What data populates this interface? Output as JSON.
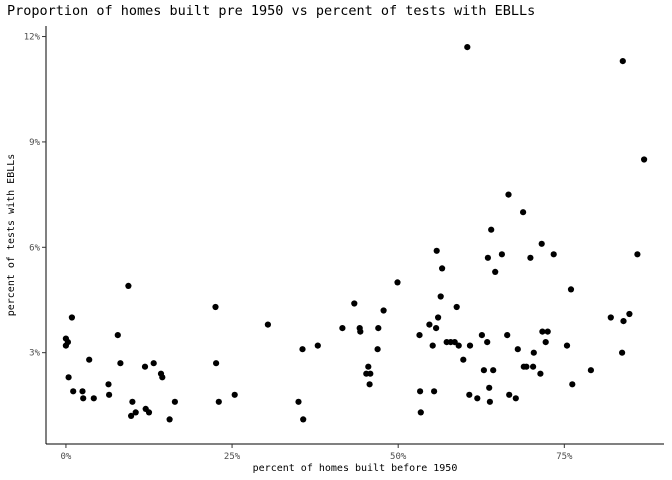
{
  "chart_data": {
    "type": "scatter",
    "title": "Proportion of homes built pre 1950 vs percent of tests with EBLLs",
    "xlabel": "percent of homes built before 1950",
    "ylabel": "percent of tests with EBLLs",
    "xlim": [
      -0.03,
      0.9
    ],
    "ylim": [
      0.004,
      0.123
    ],
    "x_ticks": [
      0,
      0.25,
      0.5,
      0.75
    ],
    "x_tick_labels": [
      "0%",
      "25%",
      "50%",
      "75%"
    ],
    "y_ticks": [
      0.03,
      0.06,
      0.09,
      0.12
    ],
    "y_tick_labels": [
      "3%",
      "6%",
      "9%",
      "12%"
    ],
    "grid": false,
    "point_color": "#000000",
    "points": [
      [
        0.0,
        0.034
      ],
      [
        0.0,
        0.032
      ],
      [
        0.003,
        0.033
      ],
      [
        0.004,
        0.023
      ],
      [
        0.009,
        0.04
      ],
      [
        0.011,
        0.019
      ],
      [
        0.025,
        0.019
      ],
      [
        0.026,
        0.017
      ],
      [
        0.035,
        0.028
      ],
      [
        0.042,
        0.017
      ],
      [
        0.064,
        0.021
      ],
      [
        0.065,
        0.018
      ],
      [
        0.078,
        0.035
      ],
      [
        0.082,
        0.027
      ],
      [
        0.094,
        0.049
      ],
      [
        0.098,
        0.012
      ],
      [
        0.1,
        0.016
      ],
      [
        0.105,
        0.013
      ],
      [
        0.119,
        0.026
      ],
      [
        0.12,
        0.014
      ],
      [
        0.125,
        0.013
      ],
      [
        0.132,
        0.027
      ],
      [
        0.143,
        0.024
      ],
      [
        0.145,
        0.023
      ],
      [
        0.156,
        0.011
      ],
      [
        0.164,
        0.016
      ],
      [
        0.225,
        0.043
      ],
      [
        0.226,
        0.027
      ],
      [
        0.23,
        0.016
      ],
      [
        0.254,
        0.018
      ],
      [
        0.304,
        0.038
      ],
      [
        0.35,
        0.016
      ],
      [
        0.356,
        0.031
      ],
      [
        0.357,
        0.011
      ],
      [
        0.379,
        0.032
      ],
      [
        0.416,
        0.037
      ],
      [
        0.434,
        0.044
      ],
      [
        0.442,
        0.037
      ],
      [
        0.443,
        0.036
      ],
      [
        0.452,
        0.024
      ],
      [
        0.455,
        0.026
      ],
      [
        0.457,
        0.021
      ],
      [
        0.458,
        0.024
      ],
      [
        0.469,
        0.031
      ],
      [
        0.47,
        0.037
      ],
      [
        0.478,
        0.042
      ],
      [
        0.499,
        0.05
      ],
      [
        0.532,
        0.035
      ],
      [
        0.533,
        0.019
      ],
      [
        0.534,
        0.013
      ],
      [
        0.547,
        0.038
      ],
      [
        0.552,
        0.032
      ],
      [
        0.554,
        0.019
      ],
      [
        0.557,
        0.037
      ],
      [
        0.558,
        0.059
      ],
      [
        0.56,
        0.04
      ],
      [
        0.564,
        0.046
      ],
      [
        0.566,
        0.054
      ],
      [
        0.573,
        0.033
      ],
      [
        0.579,
        0.033
      ],
      [
        0.585,
        0.033
      ],
      [
        0.588,
        0.043
      ],
      [
        0.591,
        0.032
      ],
      [
        0.598,
        0.028
      ],
      [
        0.604,
        0.117
      ],
      [
        0.607,
        0.018
      ],
      [
        0.608,
        0.032
      ],
      [
        0.619,
        0.017
      ],
      [
        0.626,
        0.035
      ],
      [
        0.629,
        0.025
      ],
      [
        0.634,
        0.033
      ],
      [
        0.635,
        0.057
      ],
      [
        0.637,
        0.02
      ],
      [
        0.638,
        0.016
      ],
      [
        0.64,
        0.065
      ],
      [
        0.643,
        0.025
      ],
      [
        0.646,
        0.053
      ],
      [
        0.656,
        0.058
      ],
      [
        0.664,
        0.035
      ],
      [
        0.666,
        0.075
      ],
      [
        0.667,
        0.018
      ],
      [
        0.677,
        0.017
      ],
      [
        0.68,
        0.031
      ],
      [
        0.688,
        0.07
      ],
      [
        0.689,
        0.026
      ],
      [
        0.693,
        0.026
      ],
      [
        0.699,
        0.057
      ],
      [
        0.703,
        0.026
      ],
      [
        0.704,
        0.03
      ],
      [
        0.714,
        0.024
      ],
      [
        0.716,
        0.061
      ],
      [
        0.717,
        0.036
      ],
      [
        0.722,
        0.033
      ],
      [
        0.725,
        0.036
      ],
      [
        0.734,
        0.058
      ],
      [
        0.754,
        0.032
      ],
      [
        0.76,
        0.048
      ],
      [
        0.762,
        0.021
      ],
      [
        0.79,
        0.025
      ],
      [
        0.82,
        0.04
      ],
      [
        0.837,
        0.03
      ],
      [
        0.838,
        0.113
      ],
      [
        0.839,
        0.039
      ],
      [
        0.848,
        0.041
      ],
      [
        0.86,
        0.058
      ],
      [
        0.87,
        0.085
      ]
    ]
  }
}
